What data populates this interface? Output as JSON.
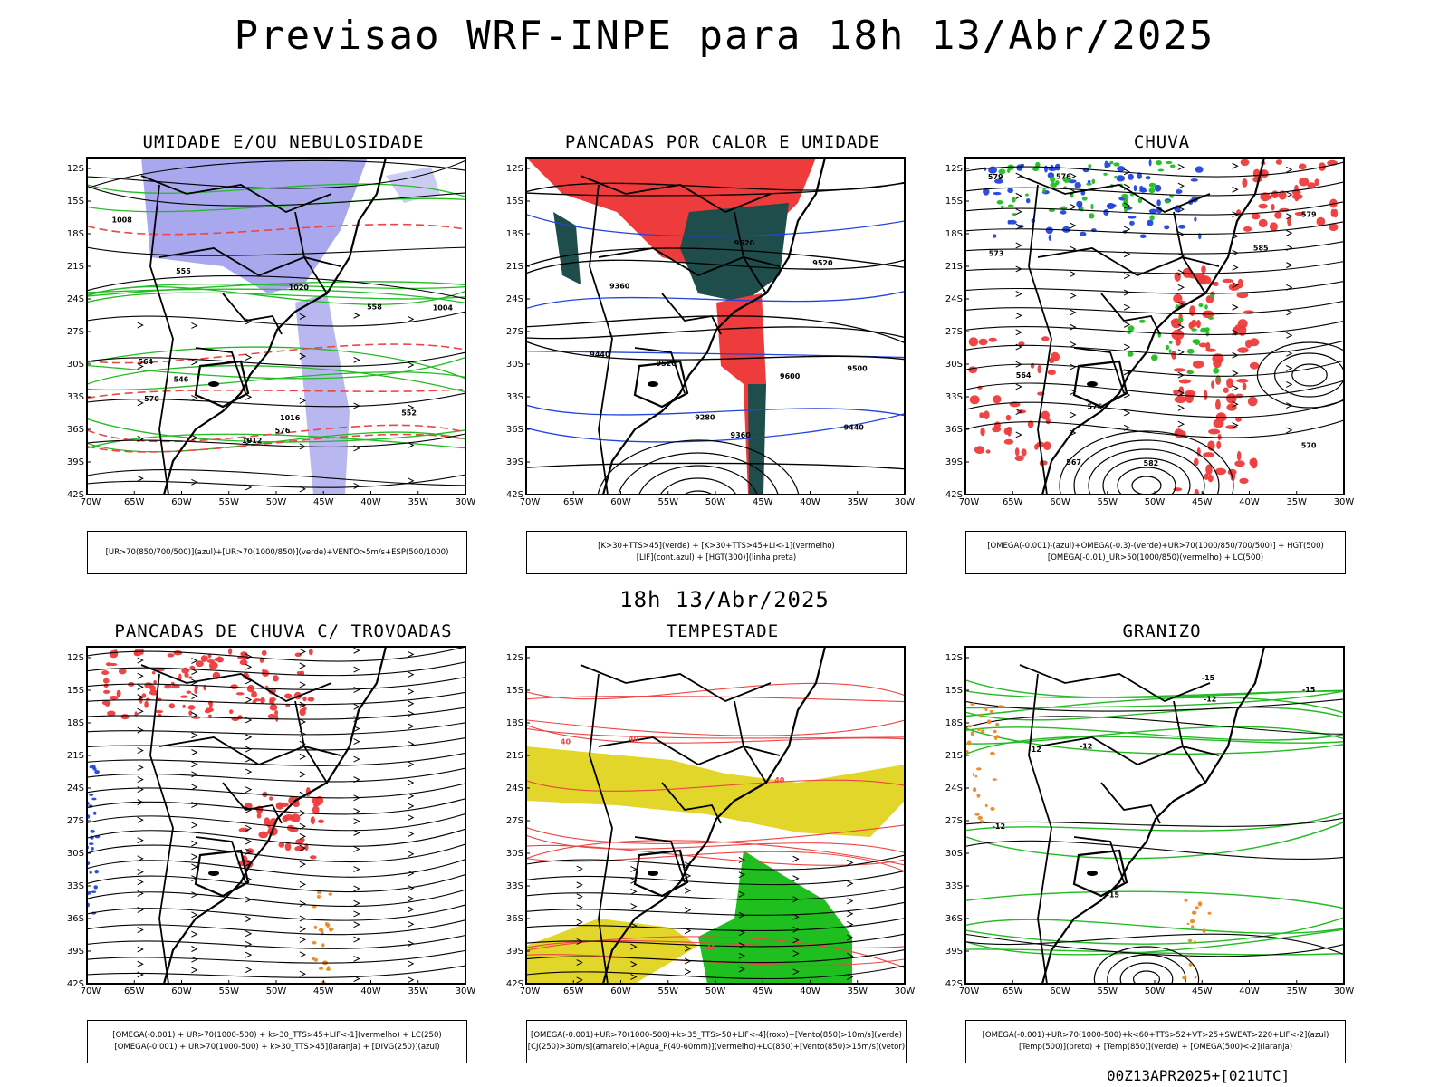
{
  "header": {
    "title": "Previsao WRF-INPE  para 18h 13/Abr/2025",
    "middle_title": "18h 13/Abr/2025",
    "footer": "00Z13APR2025+[021UTC]"
  },
  "axes": {
    "lat_labels": [
      "12S",
      "15S",
      "18S",
      "21S",
      "24S",
      "27S",
      "30S",
      "33S",
      "36S",
      "39S",
      "42S"
    ],
    "lon_labels": [
      "70W",
      "65W",
      "60W",
      "55W",
      "50W",
      "45W",
      "40W",
      "35W",
      "30W"
    ]
  },
  "colors": {
    "blue_shade": "#9a98ea",
    "green_contour": "#22bb22",
    "red_contour": "#ee4444",
    "red_fill": "#ee3b3b",
    "teal_fill": "#1e4d4b",
    "yellow_fill": "#e2d62a",
    "green_fill": "#1fbf1f",
    "orange": "#ee8822",
    "blue": "#2244dd"
  },
  "panels": [
    {
      "id": "umidade",
      "title": "UMIDADE E/OU NEBULOSIDADE",
      "legend": [
        "[UR>70(850/700/500)](azul)+[UR>70(1000/850)](verde)+VENTO>5m/s+ESP(500/1000)"
      ],
      "contour_labels": [
        "1012",
        "1016",
        "1020",
        "1008",
        "1004",
        "570",
        "576",
        "564",
        "558",
        "555",
        "546",
        "552"
      ]
    },
    {
      "id": "pancadas-calor",
      "title": "PANCADAS POR CALOR E UMIDADE",
      "legend": [
        "[K>30+TTS>45](verde) + [K>30+TTS>45+LI<-1](vermelho)",
        "[LIF](cont.azul) + [HGT(300)](linha preta)"
      ],
      "contour_labels": [
        "9520",
        "9600",
        "9520",
        "9440",
        "9360",
        "9280",
        "9520",
        "9440",
        "9360",
        "9500"
      ]
    },
    {
      "id": "chuva",
      "title": "CHUVA",
      "legend": [
        "[OMEGA(-0.001)-(azul)+OMEGA(-0.3)-(verde)+UR>70(1000/850/700/500)] + HGT(500)",
        "[OMEGA(-0.01)_UR>50(1000/850)(vermelho) + LC(500)"
      ],
      "contour_labels": [
        "585",
        "582",
        "579",
        "576",
        "573",
        "570",
        "567",
        "564",
        "576",
        "579"
      ]
    },
    {
      "id": "pancadas-trovoadas",
      "title": "PANCADAS DE CHUVA C/ TROVOADAS",
      "legend": [
        "[OMEGA(-0.001) + UR>70(1000-500) + k>30_TTS>45+LIF<-1](vermelho) + LC(250)",
        "[OMEGA(-0.001) + UR>70(1000-500) + k>30_TTS>45](laranja) + [DIVG(250)](azul)"
      ],
      "contour_labels": []
    },
    {
      "id": "tempestade",
      "title": "TEMPESTADE",
      "legend": [
        "[OMEGA(-0.001)+UR>70(1000-500)+k>35_TTS>50+LIF<-4](roxo)+[Vento(850)>10m/s](verde)",
        "[CJ(250)>30m/s](amarelo)+[Agua_P(40-60mm)](vermelho)+LC(850)+[Vento(850)>15m/s](vetor)"
      ],
      "contour_labels": [
        "40",
        "40",
        "40",
        "40"
      ]
    },
    {
      "id": "granizo",
      "title": "GRANIZO",
      "legend": [
        "[OMEGA(-0.001)+UR>70(1000-500)+k<60+TTS>52+VT>25+SWEAT>220+LIF<-2](azul)",
        "[Temp(500)](preto) + [Temp(850)](verde) + [OMEGA(500)<-2](laranja)"
      ],
      "contour_labels": [
        "-12",
        "-12",
        "-15",
        "-12",
        "-15",
        "-15",
        "-12"
      ]
    }
  ],
  "chart_data": [
    {
      "type": "heatmap",
      "title": "UMIDADE E/OU NEBULOSIDADE",
      "x_range": [
        "70W",
        "30W"
      ],
      "y_range": [
        "12S",
        "42S"
      ],
      "fields": [
        "UR>70(850/700/500) azul",
        "UR>70(1000/850) verde",
        "VENTO>5m/s",
        "ESP(500/1000)"
      ]
    },
    {
      "type": "heatmap",
      "title": "PANCADAS POR CALOR E UMIDADE",
      "x_range": [
        "70W",
        "30W"
      ],
      "y_range": [
        "12S",
        "42S"
      ],
      "fields": [
        "K>30+TTS>45 verde",
        "K>30+TTS>45+LI<-1 vermelho",
        "LIF cont.azul",
        "HGT(300) linha preta"
      ]
    },
    {
      "type": "heatmap",
      "title": "CHUVA",
      "x_range": [
        "70W",
        "30W"
      ],
      "y_range": [
        "12S",
        "42S"
      ],
      "fields": [
        "OMEGA(-0.001) azul",
        "OMEGA(-0.3) verde",
        "OMEGA(-0.01) vermelho",
        "HGT(500)",
        "LC(500)"
      ]
    },
    {
      "type": "heatmap",
      "title": "PANCADAS DE CHUVA C/ TROVOADAS",
      "x_range": [
        "70W",
        "30W"
      ],
      "y_range": [
        "12S",
        "42S"
      ],
      "fields": [
        "vermelho",
        "laranja",
        "DIVG(250) azul",
        "LC(250)"
      ]
    },
    {
      "type": "heatmap",
      "title": "TEMPESTADE",
      "x_range": [
        "70W",
        "30W"
      ],
      "y_range": [
        "12S",
        "42S"
      ],
      "fields": [
        "roxo",
        "Vento(850)>10m/s verde",
        "CJ(250)>30m/s amarelo",
        "Agua_P(40-60mm) vermelho",
        "LC(850)",
        "Vento(850)>15m/s vetor"
      ]
    },
    {
      "type": "heatmap",
      "title": "GRANIZO",
      "x_range": [
        "70W",
        "30W"
      ],
      "y_range": [
        "12S",
        "42S"
      ],
      "fields": [
        "azul",
        "Temp(500) preto",
        "Temp(850) verde",
        "OMEGA(500)<-2 laranja"
      ]
    }
  ]
}
